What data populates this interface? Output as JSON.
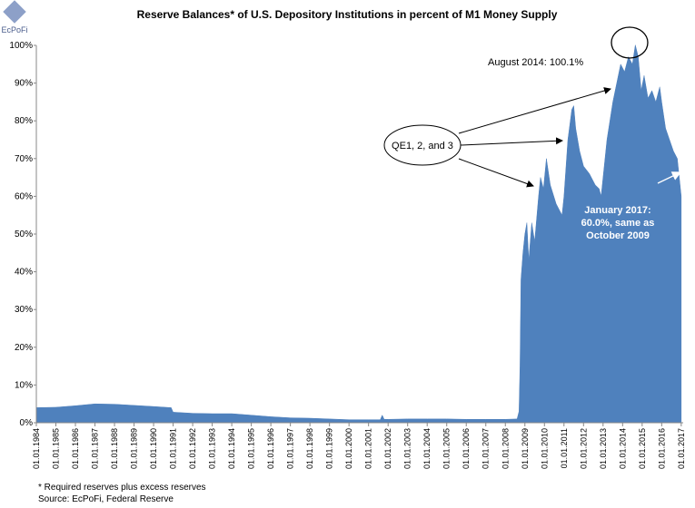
{
  "chart_data": {
    "type": "area",
    "title": "Reserve Balances* of U.S. Depository Institutions in percent of M1 Money Supply",
    "logo": "EcPoFi",
    "annotations": [
      "August 2014:  100.1%",
      "QE1, 2, and 3",
      "January 2017:",
      "60.0%, same as",
      "October 2009"
    ],
    "footnotes": [
      "* Required reserves plus excess reserves",
      "Source: EcPoFi, Federal Reserve"
    ],
    "color": "#4f81bd",
    "x": [
      1984,
      1985,
      1986,
      1987,
      1988,
      1989,
      1990,
      1990.9,
      1991,
      1992,
      1993,
      1994,
      1995,
      1996,
      1997,
      1998,
      1999,
      2000,
      2001,
      2001.6,
      2001.7,
      2001.8,
      2002,
      2003,
      2004,
      2005,
      2006,
      2007,
      2008,
      2008.6,
      2008.7,
      2008.75,
      2008.8,
      2008.9,
      2009,
      2009.1,
      2009.2,
      2009.35,
      2009.5,
      2009.7,
      2009.8,
      2009.95,
      2010.1,
      2010.3,
      2010.6,
      2010.9,
      2011,
      2011.2,
      2011.4,
      2011.5,
      2011.6,
      2011.8,
      2012,
      2012.3,
      2012.6,
      2012.8,
      2012.9,
      2013,
      2013.2,
      2013.5,
      2013.7,
      2013.9,
      2014.1,
      2014.3,
      2014.5,
      2014.65,
      2014.8,
      2014.95,
      2015.1,
      2015.3,
      2015.5,
      2015.7,
      2015.9,
      2016,
      2016.2,
      2016.4,
      2016.6,
      2016.8,
      2016.9,
      2017
    ],
    "values": [
      4.0,
      4.1,
      4.5,
      5.0,
      4.9,
      4.6,
      4.3,
      4.0,
      2.8,
      2.5,
      2.4,
      2.4,
      2.0,
      1.6,
      1.3,
      1.2,
      1.0,
      0.8,
      0.8,
      0.8,
      2.0,
      0.9,
      0.9,
      1.0,
      1.0,
      1.0,
      0.9,
      0.9,
      0.9,
      1.0,
      3.0,
      15,
      38,
      45,
      50,
      53,
      43,
      53,
      48,
      60,
      65,
      62,
      70,
      63,
      58,
      55,
      60,
      75,
      83,
      84,
      78,
      72,
      68,
      66,
      63,
      62,
      60,
      65,
      75,
      85,
      90,
      95,
      93,
      97,
      95,
      100.1,
      97,
      88,
      92,
      86,
      88,
      85,
      89,
      85,
      78,
      75,
      72,
      70,
      65,
      60
    ],
    "xlim": [
      1984,
      2017.1
    ],
    "ylim": [
      0,
      100
    ],
    "yticks": [
      {
        "value": 0,
        "label": "0%"
      },
      {
        "value": 10,
        "label": "10%"
      },
      {
        "value": 20,
        "label": "20%"
      },
      {
        "value": 30,
        "label": "30%"
      },
      {
        "value": 40,
        "label": "40%"
      },
      {
        "value": 50,
        "label": "50%"
      },
      {
        "value": 60,
        "label": "60%"
      },
      {
        "value": 70,
        "label": "70%"
      },
      {
        "value": 80,
        "label": "80%"
      },
      {
        "value": 90,
        "label": "90%"
      },
      {
        "value": 100,
        "label": "100%"
      }
    ],
    "xticks": [
      {
        "value": 1984,
        "label": "01.01.1984"
      },
      {
        "value": 1985,
        "label": "01.01.1985"
      },
      {
        "value": 1986,
        "label": "01.01.1986"
      },
      {
        "value": 1987,
        "label": "01.01.1987"
      },
      {
        "value": 1988,
        "label": "01.01.1988"
      },
      {
        "value": 1989,
        "label": "01.01.1989"
      },
      {
        "value": 1990,
        "label": "01.01.1990"
      },
      {
        "value": 1991,
        "label": "01.01.1991"
      },
      {
        "value": 1992,
        "label": "01.01.1992"
      },
      {
        "value": 1993,
        "label": "01.01.1993"
      },
      {
        "value": 1994,
        "label": "01.01.1994"
      },
      {
        "value": 1995,
        "label": "01.01.1995"
      },
      {
        "value": 1996,
        "label": "01.01.1996"
      },
      {
        "value": 1997,
        "label": "01.01.1997"
      },
      {
        "value": 1998,
        "label": "01.01.1998"
      },
      {
        "value": 1999,
        "label": "01.01.1999"
      },
      {
        "value": 2000,
        "label": "01.01.2000"
      },
      {
        "value": 2001,
        "label": "01.01.2001"
      },
      {
        "value": 2002,
        "label": "01.01.2002"
      },
      {
        "value": 2003,
        "label": "01.01.2003"
      },
      {
        "value": 2004,
        "label": "01.01.2004"
      },
      {
        "value": 2005,
        "label": "01.01.2005"
      },
      {
        "value": 2006,
        "label": "01.01.2006"
      },
      {
        "value": 2007,
        "label": "01.01.2007"
      },
      {
        "value": 2008,
        "label": "01.01.2008"
      },
      {
        "value": 2009,
        "label": "01.01.2009"
      },
      {
        "value": 2010,
        "label": "01.01.2010"
      },
      {
        "value": 2011,
        "label": "01.01.2011"
      },
      {
        "value": 2012,
        "label": "01.01.2012"
      },
      {
        "value": 2013,
        "label": "01.01.2013"
      },
      {
        "value": 2014,
        "label": "01.01.2014"
      },
      {
        "value": 2015,
        "label": "01.01.2015"
      },
      {
        "value": 2016,
        "label": "01.01.2016"
      },
      {
        "value": 2017,
        "label": "01.01.2017"
      }
    ]
  }
}
